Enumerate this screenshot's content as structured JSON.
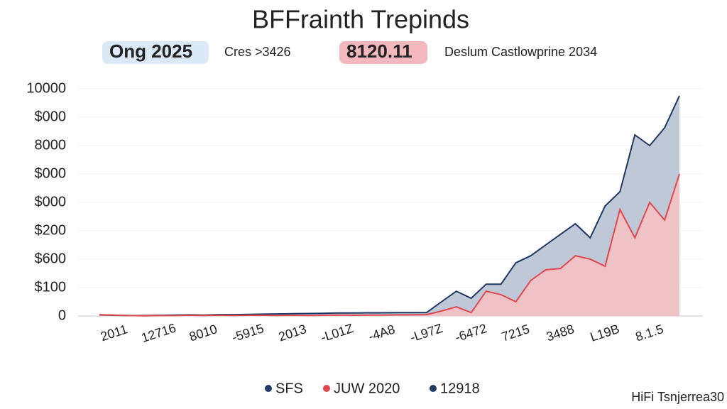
{
  "chart_data": {
    "type": "area",
    "title": "BFFrainth Trepinds",
    "badges": [
      {
        "text": "Ong 2025",
        "color": "#6a9fd8",
        "bg": "#dbe8f6"
      },
      {
        "text": "Cres >3426"
      },
      {
        "text": "8120.11",
        "color": "#ffffff",
        "bg": "#f2b8bd"
      },
      {
        "text": "Deslum Castlowprine 2034"
      }
    ],
    "categories": [
      null,
      "2011",
      null,
      null,
      "12716",
      null,
      null,
      "8010",
      null,
      null,
      "-5915",
      null,
      null,
      "2013",
      null,
      null,
      "-L01Z",
      null,
      null,
      "-4A8",
      null,
      null,
      "-L97Z",
      null,
      null,
      "-6472",
      null,
      null,
      "7215",
      null,
      null,
      "3488",
      null,
      null,
      "L19B",
      null,
      null,
      "8.1.5",
      null,
      null
    ],
    "series": [
      {
        "name": "SFS",
        "color": "#1f3864",
        "fill": "#b8c2d2",
        "values": [
          50,
          30,
          20,
          20,
          30,
          40,
          50,
          40,
          60,
          60,
          70,
          80,
          90,
          100,
          110,
          120,
          130,
          130,
          140,
          140,
          150,
          150,
          150,
          625,
          1090,
          780,
          1400,
          1400,
          2340,
          2650,
          3125,
          3590,
          4060,
          3440,
          4840,
          5470,
          7970,
          7500,
          8280,
          9690
        ]
      },
      {
        "name": "JUW 2020",
        "color": "#e0474f",
        "fill": "#f4c1c4",
        "values": [
          60,
          40,
          20,
          10,
          20,
          20,
          30,
          20,
          30,
          20,
          30,
          30,
          20,
          30,
          20,
          30,
          40,
          30,
          40,
          40,
          50,
          50,
          60,
          220,
          400,
          150,
          1090,
          940,
          625,
          1560,
          2030,
          2090,
          2650,
          2500,
          2190,
          4690,
          3440,
          5000,
          4220,
          6250
        ]
      }
    ],
    "legend_extra": {
      "name": "12918",
      "color": "#1f3864"
    },
    "ylim": [
      0,
      10000
    ],
    "yticks": [
      0,
      {
        "value": 1250,
        "label": "$100"
      },
      {
        "value": 2500,
        "label": "$600"
      },
      {
        "value": 3750,
        "label": "$200"
      },
      {
        "value": 5000,
        "label": "$000"
      },
      {
        "value": 6250,
        "label": "$000"
      },
      {
        "value": 7500,
        "label": "8000"
      },
      {
        "value": 8750,
        "label": "$000"
      },
      10000
    ],
    "grid": true,
    "watermark": "HiFi Tsnjerrea30"
  }
}
